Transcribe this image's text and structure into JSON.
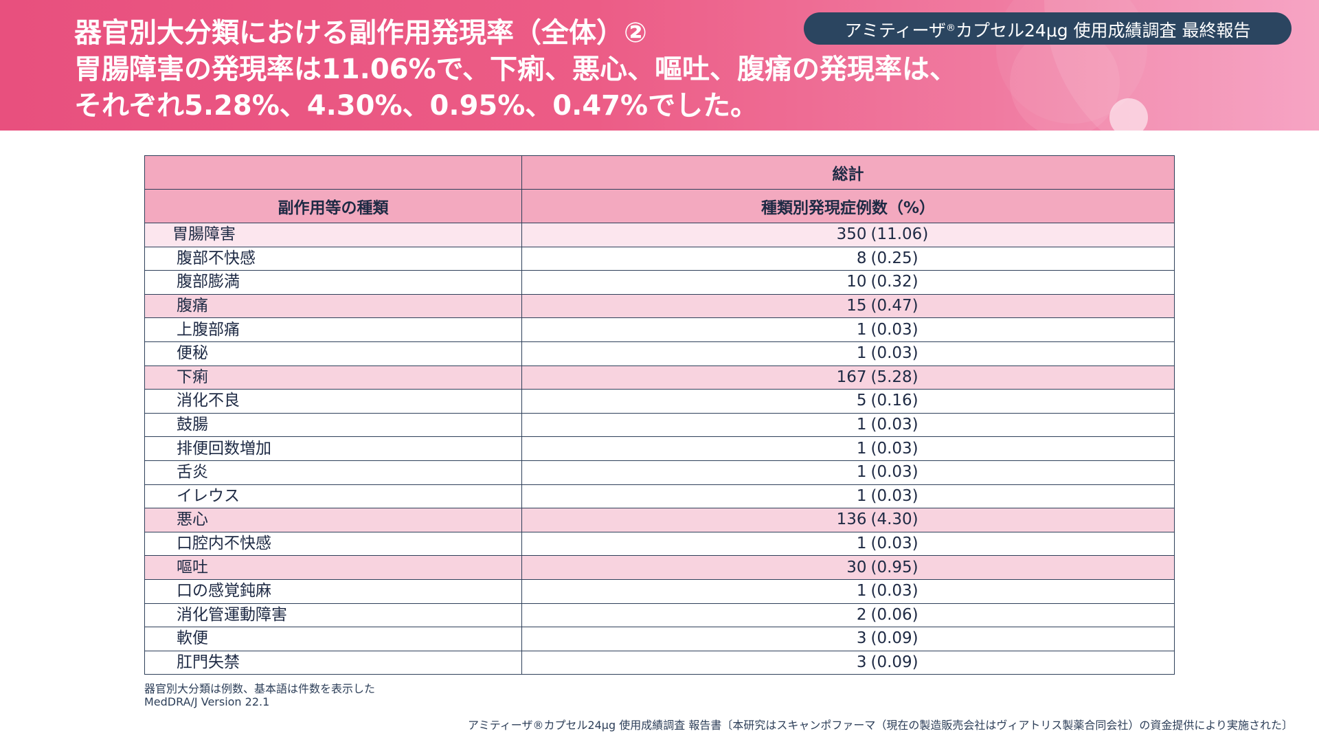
{
  "header": {
    "title_lines": [
      "器官別大分類における副作用発現率（全体）②",
      "胃腸障害の発現率は11.06%で、下痢、悪心、嘔吐、腹痛の発現率は、",
      "それぞれ5.28%、4.30%、0.95%、0.47%でした。"
    ],
    "badge_prefix": "アミティーザ",
    "badge_reg": "®",
    "badge_suffix": "カプセル24μg 使用成績調査 最終報告",
    "accent_color": "#e8507e",
    "badge_color": "#2b4560"
  },
  "table": {
    "header_top": "総計",
    "col1_header": "副作用等の種類",
    "col2_header": "種類別発現症例数（%）",
    "rows": [
      {
        "name": "胃腸障害",
        "count": "350",
        "pct": "(11.06)",
        "style": "top"
      },
      {
        "name": "腹部不快感",
        "count": "8",
        "pct": "(0.25)",
        "style": ""
      },
      {
        "name": "腹部膨満",
        "count": "10",
        "pct": "(0.32)",
        "style": ""
      },
      {
        "name": "腹痛",
        "count": "15",
        "pct": "(0.47)",
        "style": "hl"
      },
      {
        "name": "上腹部痛",
        "count": "1",
        "pct": "(0.03)",
        "style": ""
      },
      {
        "name": "便秘",
        "count": "1",
        "pct": "(0.03)",
        "style": ""
      },
      {
        "name": "下痢",
        "count": "167",
        "pct": "(5.28)",
        "style": "hl"
      },
      {
        "name": "消化不良",
        "count": "5",
        "pct": "(0.16)",
        "style": ""
      },
      {
        "name": "鼓腸",
        "count": "1",
        "pct": "(0.03)",
        "style": ""
      },
      {
        "name": "排便回数増加",
        "count": "1",
        "pct": "(0.03)",
        "style": ""
      },
      {
        "name": "舌炎",
        "count": "1",
        "pct": "(0.03)",
        "style": ""
      },
      {
        "name": "イレウス",
        "count": "1",
        "pct": "(0.03)",
        "style": ""
      },
      {
        "name": "悪心",
        "count": "136",
        "pct": "(4.30)",
        "style": "hl"
      },
      {
        "name": "口腔内不快感",
        "count": "1",
        "pct": "(0.03)",
        "style": ""
      },
      {
        "name": "嘔吐",
        "count": "30",
        "pct": "(0.95)",
        "style": "hl"
      },
      {
        "name": "口の感覚鈍麻",
        "count": "1",
        "pct": "(0.03)",
        "style": ""
      },
      {
        "name": "消化管運動障害",
        "count": "2",
        "pct": "(0.06)",
        "style": ""
      },
      {
        "name": "軟便",
        "count": "3",
        "pct": "(0.09)",
        "style": ""
      },
      {
        "name": "肛門失禁",
        "count": "3",
        "pct": "(0.09)",
        "style": ""
      }
    ]
  },
  "notes": [
    "器官別大分類は例数、基本語は件数を表示した",
    "MedDRA/J Version 22.1"
  ],
  "footer": "アミティーザ®カプセル24μg 使用成績調査 報告書〔本研究はスキャンポファーマ（現在の製造販売会社はヴィアトリス製薬合同会社）の資金提供により実施された〕"
}
